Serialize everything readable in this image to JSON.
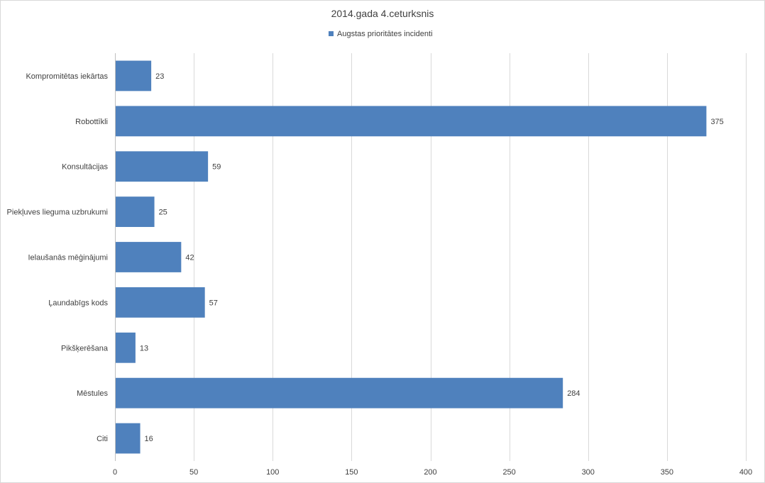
{
  "chart_data": {
    "type": "bar",
    "orientation": "horizontal",
    "title": "2014.gada 4.ceturksnis",
    "categories": [
      "Kompromitētas iekārtas",
      "Robottīkli",
      "Konsultācijas",
      "Piekļuves lieguma uzbrukumi",
      "Ielaušanās mēģinājumi",
      "Ļaundabīgs kods",
      "Pikšķerēšana",
      "Mēstules",
      "Citi"
    ],
    "series": [
      {
        "name": "Augstas prioritātes incidenti",
        "color": "#4f81bd",
        "values": [
          23,
          375,
          59,
          25,
          42,
          57,
          13,
          284,
          16
        ]
      }
    ],
    "xlim": [
      0,
      400
    ],
    "xticks": [
      0,
      50,
      100,
      150,
      200,
      250,
      300,
      350,
      400
    ],
    "grid": true,
    "legend_position": "top",
    "data_labels": true
  }
}
